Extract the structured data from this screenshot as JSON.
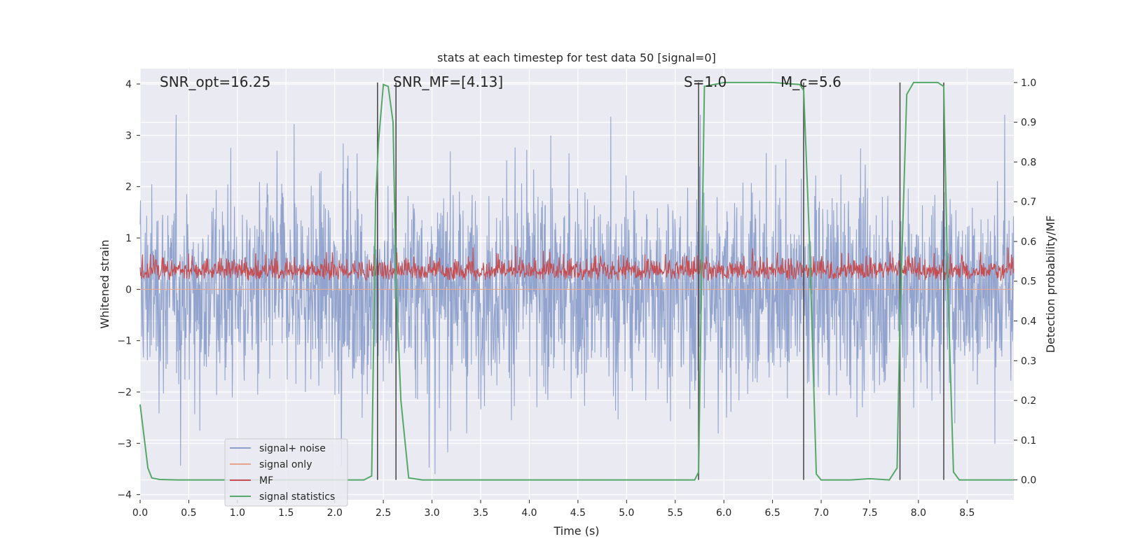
{
  "chart_data": {
    "type": "line",
    "title": "stats at each timestep for test data 50 [signal=0]",
    "xlabel": "Time (s)",
    "ylabel_left": "Whitened strain",
    "ylabel_right": "Detection probability/MF",
    "xlim": [
      0,
      8.98
    ],
    "ylim_left": [
      -4.1,
      4.3
    ],
    "ylim_right": [
      -0.05,
      1.035
    ],
    "x_ticks": [
      0.0,
      0.5,
      1.0,
      1.5,
      2.0,
      2.5,
      3.0,
      3.5,
      4.0,
      4.5,
      5.0,
      5.5,
      6.0,
      6.5,
      7.0,
      7.5,
      8.0,
      8.5
    ],
    "x_tick_labels": [
      "0.0",
      "0.5",
      "1.0",
      "1.5",
      "2.0",
      "2.5",
      "3.0",
      "3.5",
      "4.0",
      "4.5",
      "5.0",
      "5.5",
      "6.0",
      "6.5",
      "7.0",
      "7.5",
      "8.0",
      "8.5"
    ],
    "y_ticks_left": [
      4,
      3,
      2,
      1,
      0,
      -1,
      -2,
      -3,
      -4
    ],
    "y_tick_labels_left": [
      "4",
      "3",
      "2",
      "1",
      "0",
      "−1",
      "−2",
      "−3",
      "−4"
    ],
    "y_ticks_right": [
      1.0,
      0.9,
      0.8,
      0.7,
      0.6,
      0.5,
      0.4,
      0.3,
      0.2,
      0.1,
      0.0
    ],
    "y_tick_labels_right": [
      "1.0",
      "0.9",
      "0.8",
      "0.7",
      "0.6",
      "0.5",
      "0.4",
      "0.3",
      "0.2",
      "0.1",
      "0.0"
    ],
    "grid": true,
    "legend_position": "lower-left",
    "annotations": [
      {
        "text": "SNR_opt=16.25",
        "x": 0.2
      },
      {
        "text": "SNR_MF=[4.13]",
        "x": 2.6
      },
      {
        "text": "S=1.0",
        "x": 5.6
      },
      {
        "text": "M_c=5.6",
        "x": 6.6
      }
    ],
    "vertical_lines": [
      2.44,
      2.63,
      5.74,
      6.82,
      7.81,
      8.26
    ],
    "series": [
      {
        "name": "signal+ noise",
        "color": "#8da0cb",
        "axis": "left",
        "description_level": "noise band approx. ±1.5 with peaks to about 3.4 and -3.6"
      },
      {
        "name": "signal only",
        "color": "#e8a58c",
        "axis": "left",
        "values_constant": 0.0
      },
      {
        "name": "MF",
        "color": "#c44e52",
        "axis": "right",
        "range": [
          0.5,
          0.6
        ]
      },
      {
        "name": "signal statistics",
        "color": "#55a868",
        "axis": "right",
        "x": [
          0.0,
          0.08,
          0.12,
          0.2,
          0.4,
          1.0,
          2.0,
          2.3,
          2.38,
          2.42,
          2.45,
          2.5,
          2.55,
          2.6,
          2.63,
          2.68,
          2.76,
          2.9,
          4.0,
          5.0,
          5.6,
          5.7,
          5.74,
          5.8,
          6.0,
          6.5,
          6.78,
          6.82,
          6.88,
          6.95,
          7.0,
          7.3,
          7.5,
          7.7,
          7.78,
          7.81,
          7.88,
          7.95,
          8.05,
          8.2,
          8.26,
          8.3,
          8.36,
          8.42,
          8.6,
          8.98
        ],
        "y": [
          0.19,
          0.03,
          0.005,
          0.001,
          0.0,
          0.0,
          0.0,
          0.0,
          0.01,
          0.7,
          0.85,
          0.995,
          0.99,
          0.9,
          0.5,
          0.2,
          0.005,
          0.0,
          0.0,
          0.0,
          0.0,
          0.0,
          0.02,
          0.99,
          1.0,
          1.0,
          0.995,
          0.98,
          0.6,
          0.015,
          0.0,
          0.0,
          0.003,
          0.0,
          0.03,
          0.4,
          0.97,
          1.0,
          1.0,
          1.0,
          0.99,
          0.5,
          0.02,
          0.0,
          0.0,
          0.0
        ]
      }
    ]
  },
  "legend": {
    "items": [
      {
        "label": "signal+ noise",
        "color": "#8da0cb"
      },
      {
        "label": "signal only",
        "color": "#e8a58c"
      },
      {
        "label": "MF",
        "color": "#c44e52"
      },
      {
        "label": "signal statistics",
        "color": "#55a868"
      }
    ]
  },
  "style": {
    "plot_background": "#eaeaf2",
    "grid_color": "#ffffff",
    "vline_color": "#4d4d4d"
  }
}
